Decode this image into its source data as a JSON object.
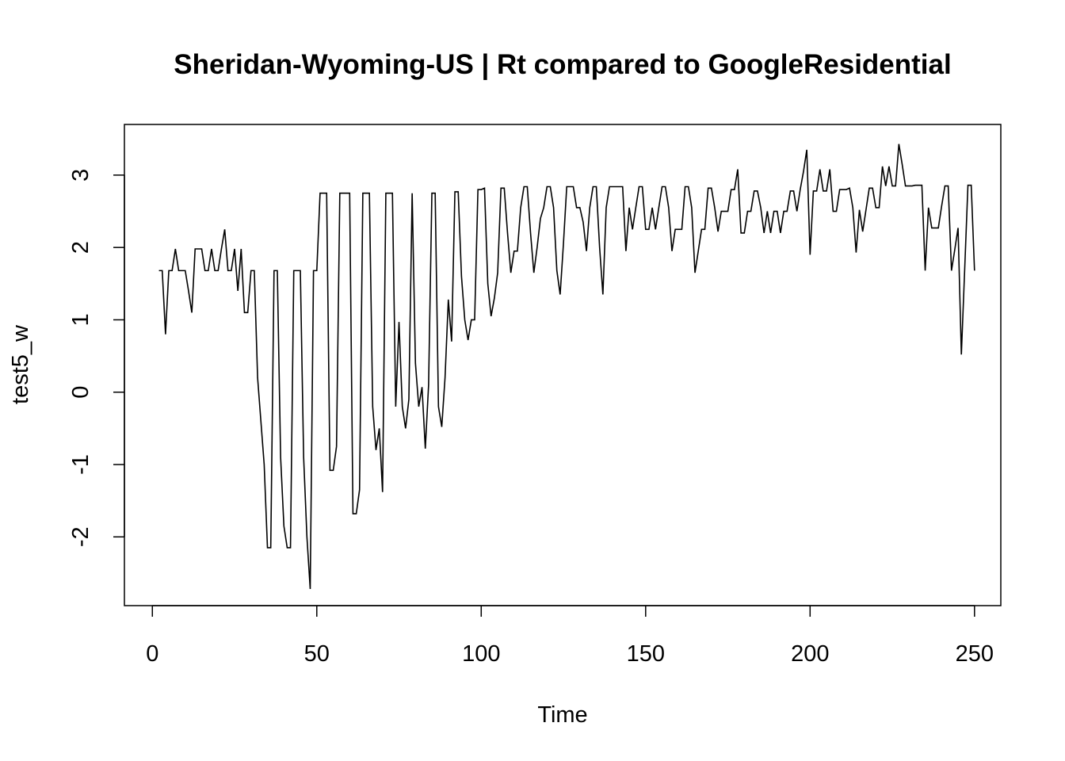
{
  "chart_data": {
    "type": "line",
    "title": "Sheridan-Wyoming-US | Rt compared to GoogleResidential",
    "xlabel": "Time",
    "ylabel": "test5_w",
    "xlim": [
      -8.5,
      258
    ],
    "ylim": [
      -2.95,
      3.7
    ],
    "x_ticks": [
      0,
      50,
      100,
      150,
      200,
      250
    ],
    "y_ticks": [
      -2,
      -1,
      0,
      1,
      2,
      3
    ],
    "x_tick_labels": [
      "0",
      "50",
      "100",
      "150",
      "200",
      "250"
    ],
    "y_tick_labels": [
      "-2",
      "-1",
      "0",
      "1",
      "2",
      "3"
    ],
    "grid": false,
    "series": [
      {
        "x_start": 2,
        "values": [
          1.68,
          1.68,
          0.8,
          1.68,
          1.68,
          1.98,
          1.68,
          1.68,
          1.68,
          1.4,
          1.1,
          1.98,
          1.98,
          1.98,
          1.68,
          1.68,
          1.98,
          1.68,
          1.68,
          1.98,
          2.25,
          1.68,
          1.68,
          1.98,
          1.4,
          1.98,
          1.1,
          1.1,
          1.68,
          1.68,
          0.2,
          -0.4,
          -1.0,
          -2.15,
          -2.15,
          1.68,
          1.68,
          -0.9,
          -1.85,
          -2.15,
          -2.15,
          1.68,
          1.68,
          1.68,
          -0.9,
          -2.0,
          -2.72,
          1.68,
          1.68,
          2.75,
          2.75,
          2.75,
          -1.08,
          -1.08,
          -0.75,
          2.75,
          2.75,
          2.75,
          2.75,
          -1.68,
          -1.68,
          -1.35,
          2.75,
          2.75,
          2.75,
          -0.2,
          -0.8,
          -0.5,
          -1.38,
          2.75,
          2.75,
          2.75,
          -0.2,
          0.97,
          -0.2,
          -0.5,
          -0.1,
          2.75,
          0.4,
          -0.2,
          0.07,
          -0.78,
          0.1,
          2.75,
          2.75,
          -0.2,
          -0.48,
          0.2,
          1.28,
          0.7,
          2.77,
          2.77,
          1.6,
          1.0,
          0.72,
          1.0,
          1.0,
          2.8,
          2.8,
          2.82,
          1.5,
          1.05,
          1.3,
          1.65,
          2.82,
          2.82,
          2.2,
          1.65,
          1.95,
          1.95,
          2.55,
          2.84,
          2.84,
          2.2,
          1.65,
          2.0,
          2.4,
          2.55,
          2.84,
          2.84,
          2.55,
          1.68,
          1.35,
          2.05,
          2.84,
          2.84,
          2.84,
          2.55,
          2.55,
          2.35,
          1.95,
          2.55,
          2.84,
          2.84,
          2.0,
          1.35,
          2.55,
          2.84,
          2.84,
          2.84,
          2.84,
          2.84,
          1.95,
          2.55,
          2.25,
          2.55,
          2.84,
          2.84,
          2.25,
          2.25,
          2.55,
          2.25,
          2.55,
          2.84,
          2.84,
          2.55,
          1.95,
          2.25,
          2.25,
          2.25,
          2.84,
          2.84,
          2.55,
          1.65,
          1.95,
          2.25,
          2.25,
          2.82,
          2.82,
          2.55,
          2.22,
          2.5,
          2.5,
          2.5,
          2.8,
          2.8,
          3.08,
          2.2,
          2.2,
          2.5,
          2.5,
          2.78,
          2.78,
          2.55,
          2.2,
          2.5,
          2.2,
          2.5,
          2.5,
          2.2,
          2.5,
          2.5,
          2.78,
          2.78,
          2.5,
          2.8,
          3.05,
          3.35,
          1.9,
          2.78,
          2.78,
          3.08,
          2.78,
          2.78,
          3.08,
          2.5,
          2.5,
          2.8,
          2.8,
          2.8,
          2.82,
          2.55,
          1.93,
          2.52,
          2.22,
          2.52,
          2.82,
          2.82,
          2.55,
          2.55,
          3.12,
          2.85,
          3.12,
          2.85,
          2.85,
          3.43,
          3.15,
          2.85,
          2.85,
          2.85,
          2.86,
          2.86,
          2.86,
          1.68,
          2.55,
          2.27,
          2.27,
          2.27,
          2.57,
          2.85,
          2.85,
          1.68,
          1.97,
          2.27,
          0.52,
          1.68,
          2.86,
          2.86,
          1.68
        ]
      }
    ]
  }
}
